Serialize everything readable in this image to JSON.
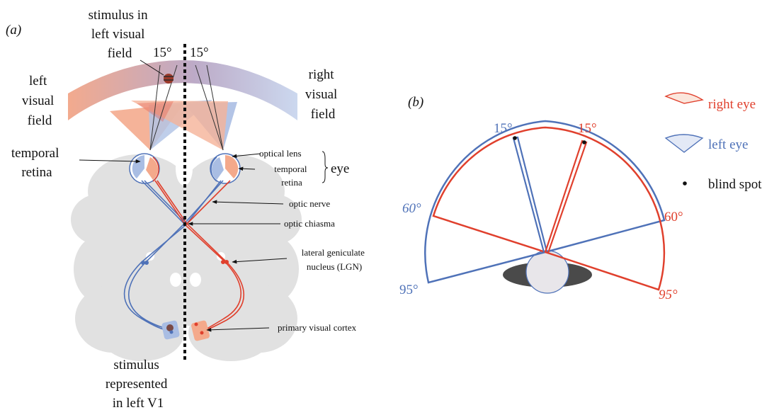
{
  "panel_a": {
    "label": "(a)",
    "stimulus_left_field": [
      "stimulus in",
      "left visual",
      "field"
    ],
    "angle_left": "15°",
    "angle_right": "15°",
    "left_visual_field": [
      "left",
      "visual",
      "field"
    ],
    "right_visual_field": [
      "right",
      "visual",
      "field"
    ],
    "temporal_retina_left": [
      "temporal",
      "retina"
    ],
    "optical_lens": "optical lens",
    "temporal_retina_right": [
      "temporal",
      "retina"
    ],
    "eye": "eye",
    "optic_nerve": "optic nerve",
    "optic_chiasma": "optic chiasma",
    "lgn": [
      "lateral geniculate",
      "nucleus (LGN)"
    ],
    "primary_visual_cortex": "primary visual cortex",
    "stimulus_v1": [
      "stimulus",
      "represented",
      "in left V1"
    ]
  },
  "panel_b": {
    "label": "(b)",
    "left_15": "15°",
    "right_15": "15°",
    "left_60": "60°",
    "right_60": "60°",
    "left_95": "95°",
    "right_95": "95°",
    "legend": {
      "right_eye": "right eye",
      "left_eye": "left eye",
      "blind_spot": "blind spot"
    }
  },
  "colors": {
    "red": "#e0402d",
    "blue": "#4f72b8",
    "salmon": "#f4a98b",
    "lightblue": "#a9bde3",
    "brain": "#e1e1e1"
  }
}
